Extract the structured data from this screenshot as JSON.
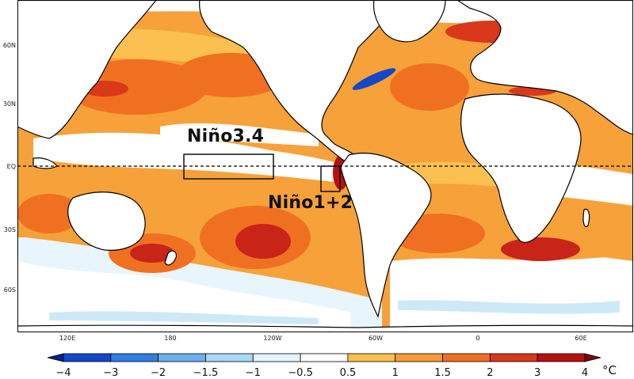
{
  "map": {
    "lat_labels": [
      "60N",
      "30N",
      "EQ",
      "30S",
      "60S"
    ],
    "lon_labels": [
      "120E",
      "180",
      "120W",
      "60W",
      "0",
      "60E"
    ],
    "regions": [
      {
        "name": "Niño3.4",
        "label": "Niño3.4"
      },
      {
        "name": "Niño1+2",
        "label": "Niño1+2"
      }
    ]
  },
  "colorbar": {
    "levels": [
      "−4",
      "−3",
      "−2",
      "−1.5",
      "−1",
      "−0.5",
      "0.5",
      "1",
      "1.5",
      "2",
      "3",
      "4"
    ],
    "colors": [
      "#0a1f8f",
      "#1448c8",
      "#2f7fe0",
      "#6bb0f0",
      "#a9d8f5",
      "#e4f4fc",
      "#ffffff",
      "#fbc04f",
      "#f79a3a",
      "#f07022",
      "#d9381a",
      "#b5120f",
      "#7a0a0a"
    ],
    "unit": "°C"
  },
  "colors": {
    "ocean_base": "#f7a13a",
    "ocean_light": "#fbc04f",
    "warm": "#f07022",
    "hot": "#c92418",
    "cool": "#cde9f7",
    "land": "#ffffff",
    "coast": "#000000"
  }
}
